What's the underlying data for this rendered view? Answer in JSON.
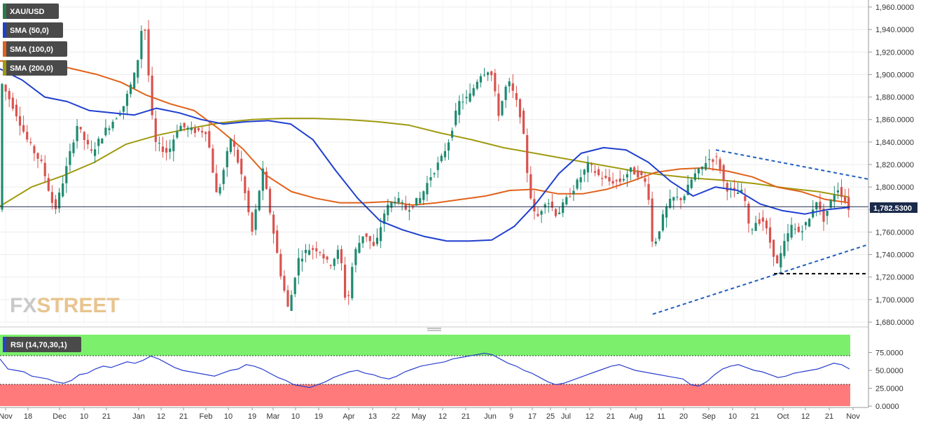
{
  "instrument": "XAU/USD",
  "watermark": {
    "fx": "FX",
    "street": "STREET"
  },
  "legend": [
    {
      "label": "XAU/USD",
      "color": "#333333"
    },
    {
      "label": "SMA (50,0)",
      "color": "#1f3fcf"
    },
    {
      "label": "SMA (100,0)",
      "color": "#e0621a"
    },
    {
      "label": "SMA (200,0)",
      "color": "#a09a10"
    }
  ],
  "current_price": "1,782.5300",
  "colors": {
    "up": "#1f8a70",
    "down": "#d9534f",
    "sma50": "#1f3fcf",
    "sma100": "#e0621a",
    "sma200": "#a09a10",
    "trendline": "#1f5fbf",
    "rsi_line": "#2a3fcf",
    "rsi_overbought": "#7cf06c",
    "rsi_oversold": "#ff7b7b"
  },
  "chart_data": [
    {
      "type": "candlestick",
      "title": "",
      "ylim": [
        1675,
        1965
      ],
      "y_ticks": [
        "1,960.0000",
        "1,940.0000",
        "1,920.0000",
        "1,900.0000",
        "1,880.0000",
        "1,860.0000",
        "1,840.0000",
        "1,820.0000",
        "1,800.0000",
        "1,780.0000",
        "1,760.0000",
        "1,740.0000",
        "1,720.0000",
        "1,700.0000",
        "1,680.0000"
      ],
      "x_ticks": [
        "Nov",
        "18",
        "Dec",
        "10",
        "21",
        "Jan",
        "12",
        "21",
        "Feb",
        "10",
        "19",
        "Mar",
        "10",
        "19",
        "Apr",
        "13",
        "22",
        "May",
        "12",
        "21",
        "Jun",
        "9",
        "17",
        "25",
        "Jul",
        "12",
        "21",
        "Aug",
        "11",
        "20",
        "Sep",
        "10",
        "21",
        "Oct",
        "12",
        "21",
        "Nov"
      ],
      "current_price_line": 1782.53,
      "sma50": [
        1905,
        1895,
        1880,
        1876,
        1868,
        1866,
        1864,
        1870,
        1866,
        1860,
        1856,
        1858,
        1859,
        1856,
        1842,
        1815,
        1790,
        1770,
        1762,
        1756,
        1752,
        1752,
        1753,
        1765,
        1786,
        1812,
        1830,
        1835,
        1833,
        1822,
        1805,
        1792,
        1800,
        1797,
        1785,
        1779,
        1776,
        1780,
        1782
      ],
      "sma100": [
        1912,
        1912,
        1910,
        1905,
        1900,
        1893,
        1882,
        1874,
        1868,
        1852,
        1834,
        1810,
        1796,
        1790,
        1786,
        1786,
        1787,
        1784,
        1786,
        1789,
        1792,
        1797,
        1798,
        1794,
        1794,
        1798,
        1805,
        1813,
        1816,
        1817,
        1814,
        1809,
        1800,
        1796,
        1789,
        1786
      ],
      "sma200": [
        1783,
        1800,
        1810,
        1822,
        1838,
        1846,
        1852,
        1857,
        1860,
        1861,
        1861,
        1860,
        1858,
        1855,
        1848,
        1842,
        1835,
        1830,
        1825,
        1820,
        1815,
        1811,
        1808,
        1806,
        1803,
        1799,
        1796,
        1791
      ],
      "trendlines": [
        {
          "from": [
            "Sep 3",
            1833
          ],
          "to": [
            "Nov 3",
            1808
          ],
          "style": "dashed"
        },
        {
          "from": [
            "Aug 9",
            1687
          ],
          "to": [
            "Nov 3",
            1749
          ],
          "style": "dashed"
        },
        {
          "from": [
            "Sep 29",
            1723
          ],
          "to": [
            "Nov 3",
            1723
          ],
          "style": "dashed"
        }
      ]
    },
    {
      "type": "line",
      "title": "",
      "indicator": "RSI (14,70,30,1)",
      "ylim": [
        0,
        100
      ],
      "y_ticks": [
        "75.0000",
        "50.0000",
        "25.0000",
        "0.0000"
      ],
      "overbought": 70,
      "oversold": 30,
      "values": [
        66,
        52,
        50,
        48,
        42,
        40,
        38,
        34,
        32,
        36,
        44,
        46,
        52,
        56,
        54,
        58,
        62,
        60,
        64,
        70,
        66,
        60,
        54,
        50,
        48,
        46,
        44,
        42,
        46,
        50,
        52,
        58,
        56,
        52,
        46,
        40,
        36,
        30,
        28,
        26,
        30,
        34,
        40,
        44,
        48,
        50,
        46,
        44,
        40,
        38,
        42,
        48,
        52,
        56,
        58,
        60,
        62,
        66,
        68,
        70,
        72,
        74,
        72,
        66,
        60,
        56,
        50,
        46,
        40,
        34,
        30,
        32,
        36,
        40,
        44,
        48,
        52,
        56,
        58,
        54,
        50,
        48,
        46,
        44,
        42,
        40,
        38,
        30,
        28,
        34,
        44,
        52,
        56,
        58,
        54,
        50,
        48,
        44,
        40,
        42,
        46,
        48,
        50,
        52,
        56,
        60,
        58,
        52
      ]
    }
  ]
}
